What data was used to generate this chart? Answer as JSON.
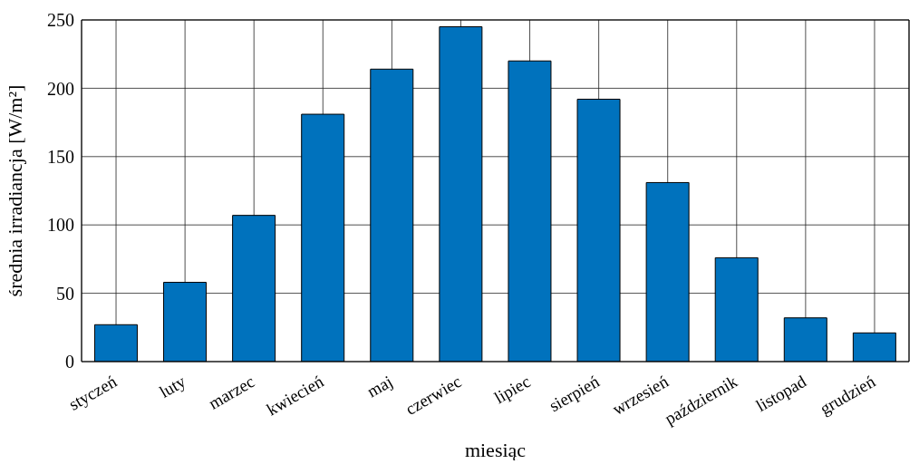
{
  "chart_data": {
    "type": "bar",
    "xlabel": "miesiąc",
    "ylabel": "średnia irradiancja [W/m²]",
    "categories": [
      "styczeń",
      "luty",
      "marzec",
      "kwiecień",
      "maj",
      "czerwiec",
      "lipiec",
      "sierpień",
      "wrzesień",
      "październik",
      "listopad",
      "grudzień"
    ],
    "values": [
      27,
      58,
      107,
      181,
      214,
      245,
      220,
      192,
      131,
      76,
      32,
      21
    ],
    "color": "#0072bd",
    "ylim": [
      0,
      250
    ],
    "yticks": [
      0,
      50,
      100,
      150,
      200,
      250
    ],
    "grid": true
  }
}
